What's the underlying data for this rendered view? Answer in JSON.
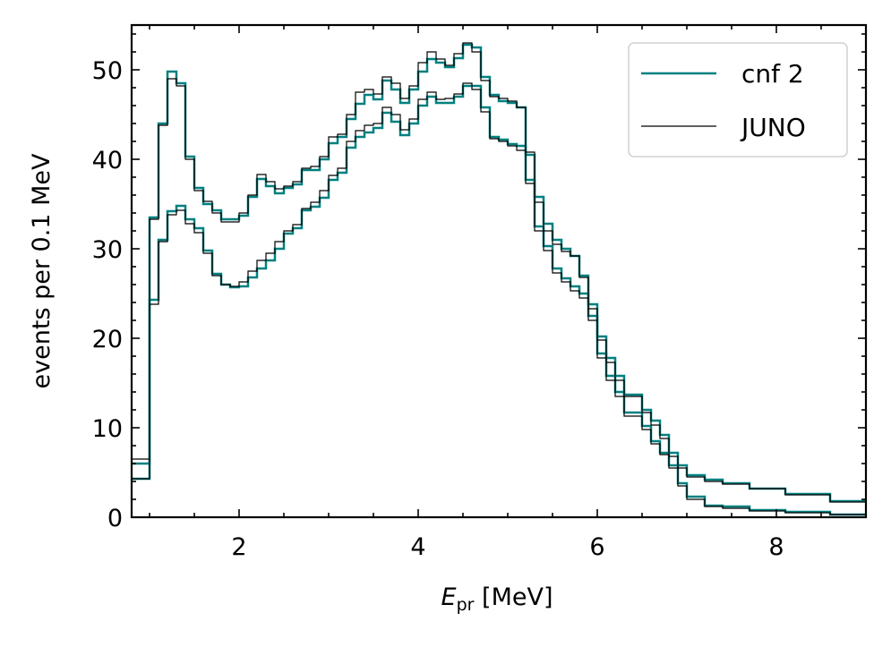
{
  "chart_data": {
    "type": "line",
    "drawstyle": "steps",
    "xlabel_main": "E",
    "xlabel_sub": "pr",
    "xlabel_unit": " [MeV]",
    "ylabel": "events per 0.1 MeV",
    "xlim": [
      0.8,
      9.0
    ],
    "ylim": [
      0,
      55
    ],
    "xticks": [
      2,
      4,
      6,
      8
    ],
    "xtick_labels": [
      "2",
      "4",
      "6",
      "8"
    ],
    "yticks": [
      0,
      10,
      20,
      30,
      40,
      50
    ],
    "ytick_labels": [
      "0",
      "10",
      "20",
      "30",
      "40",
      "50"
    ],
    "legend_position": "top-right",
    "series": [
      {
        "name": "cnf 2",
        "color": "#008080",
        "show_in_legend": true,
        "edges": [
          0.8,
          1.0,
          1.1,
          1.2,
          1.3,
          1.4,
          1.5,
          1.6,
          1.7,
          1.8,
          1.9,
          2.0,
          2.1,
          2.2,
          2.3,
          2.4,
          2.5,
          2.6,
          2.7,
          2.8,
          2.9,
          3.0,
          3.1,
          3.2,
          3.3,
          3.4,
          3.5,
          3.6,
          3.7,
          3.8,
          3.9,
          4.0,
          4.1,
          4.2,
          4.3,
          4.4,
          4.5,
          4.6,
          4.7,
          4.8,
          4.9,
          5.0,
          5.1,
          5.2,
          5.3,
          5.4,
          5.5,
          5.6,
          5.7,
          5.8,
          5.9,
          6.0,
          6.1,
          6.2,
          6.3,
          6.4,
          6.5,
          6.6,
          6.7,
          6.8,
          6.9,
          7.0,
          7.2,
          7.4,
          7.7,
          8.1,
          8.6,
          9.0
        ],
        "values": [
          4.3,
          33.5,
          44.0,
          49.8,
          48.5,
          40.3,
          36.8,
          35.0,
          34.3,
          33.3,
          33.3,
          33.7,
          35.8,
          37.8,
          37.0,
          36.2,
          36.8,
          37.2,
          38.8,
          38.8,
          40.0,
          41.8,
          42.5,
          44.5,
          46.2,
          47.2,
          46.7,
          48.8,
          47.8,
          46.3,
          47.8,
          49.8,
          51.2,
          50.8,
          50.3,
          51.3,
          52.8,
          52.5,
          49.2,
          47.2,
          46.5,
          46.3,
          45.8,
          40.5,
          35.8,
          32.8,
          31.0,
          30.0,
          29.2,
          27.0,
          23.8,
          20.2,
          17.8,
          15.8,
          13.7,
          13.7,
          12.0,
          10.8,
          9.2,
          7.2,
          5.8,
          4.7,
          4.2,
          3.8,
          3.2,
          2.6,
          1.8
        ]
      },
      {
        "name": "cnf 2",
        "color": "#008080",
        "show_in_legend": false,
        "edges": [
          0.8,
          1.0,
          1.1,
          1.2,
          1.3,
          1.4,
          1.5,
          1.6,
          1.7,
          1.8,
          1.9,
          2.0,
          2.1,
          2.2,
          2.3,
          2.4,
          2.5,
          2.6,
          2.7,
          2.8,
          2.9,
          3.0,
          3.1,
          3.2,
          3.3,
          3.4,
          3.5,
          3.6,
          3.7,
          3.8,
          3.9,
          4.0,
          4.1,
          4.2,
          4.3,
          4.4,
          4.5,
          4.6,
          4.7,
          4.8,
          4.9,
          5.0,
          5.1,
          5.2,
          5.3,
          5.4,
          5.5,
          5.6,
          5.7,
          5.8,
          5.9,
          6.0,
          6.1,
          6.2,
          6.3,
          6.4,
          6.5,
          6.6,
          6.7,
          6.8,
          6.9,
          7.0,
          7.2,
          7.4,
          7.7,
          8.1,
          8.6,
          9.0
        ],
        "values": [
          6.0,
          24.3,
          31.0,
          34.2,
          34.8,
          33.3,
          32.3,
          29.8,
          27.2,
          26.0,
          25.7,
          25.8,
          26.8,
          27.8,
          28.7,
          30.0,
          31.7,
          32.3,
          34.3,
          34.7,
          35.7,
          37.7,
          38.5,
          41.3,
          42.5,
          43.0,
          43.5,
          45.2,
          44.2,
          42.7,
          44.0,
          46.0,
          47.0,
          46.3,
          46.3,
          47.0,
          48.2,
          48.2,
          45.8,
          42.5,
          42.2,
          41.7,
          41.5,
          37.7,
          32.5,
          30.3,
          27.8,
          26.7,
          25.8,
          25.0,
          22.5,
          18.3,
          15.8,
          14.0,
          11.7,
          11.7,
          10.2,
          8.5,
          7.2,
          5.8,
          3.8,
          2.3,
          1.3,
          1.2,
          0.8,
          0.6,
          0.3
        ]
      },
      {
        "name": "JUNO",
        "color": "#000000",
        "show_in_legend": true,
        "edges": [
          0.8,
          1.0,
          1.1,
          1.2,
          1.3,
          1.4,
          1.5,
          1.6,
          1.7,
          1.8,
          1.9,
          2.0,
          2.1,
          2.2,
          2.3,
          2.4,
          2.5,
          2.6,
          2.7,
          2.8,
          2.9,
          3.0,
          3.1,
          3.2,
          3.3,
          3.4,
          3.5,
          3.6,
          3.7,
          3.8,
          3.9,
          4.0,
          4.1,
          4.2,
          4.3,
          4.4,
          4.5,
          4.6,
          4.7,
          4.8,
          4.9,
          5.0,
          5.1,
          5.2,
          5.3,
          5.4,
          5.5,
          5.6,
          5.7,
          5.8,
          5.9,
          6.0,
          6.1,
          6.2,
          6.3,
          6.4,
          6.5,
          6.6,
          6.7,
          6.8,
          6.9,
          7.0,
          7.2,
          7.4,
          7.7,
          8.1,
          8.6,
          9.0
        ],
        "values": [
          4.3,
          33.3,
          43.8,
          49.0,
          48.2,
          40.0,
          36.5,
          35.3,
          34.0,
          33.0,
          33.0,
          34.0,
          36.0,
          38.3,
          37.5,
          36.7,
          37.0,
          37.5,
          39.0,
          39.2,
          40.3,
          42.5,
          42.8,
          45.0,
          47.5,
          47.8,
          47.3,
          49.2,
          48.5,
          46.8,
          48.2,
          50.8,
          52.0,
          51.2,
          50.5,
          51.8,
          53.0,
          52.0,
          48.8,
          47.0,
          46.8,
          46.5,
          45.8,
          40.8,
          35.2,
          32.0,
          30.5,
          29.7,
          29.2,
          26.8,
          23.3,
          19.8,
          17.3,
          15.3,
          13.5,
          13.5,
          11.7,
          10.3,
          8.8,
          6.8,
          5.5,
          4.5,
          4.0,
          3.7,
          3.2,
          2.5,
          1.7
        ]
      },
      {
        "name": "JUNO",
        "color": "#000000",
        "show_in_legend": false,
        "edges": [
          0.8,
          1.0,
          1.1,
          1.2,
          1.3,
          1.4,
          1.5,
          1.6,
          1.7,
          1.8,
          1.9,
          2.0,
          2.1,
          2.2,
          2.3,
          2.4,
          2.5,
          2.6,
          2.7,
          2.8,
          2.9,
          3.0,
          3.1,
          3.2,
          3.3,
          3.4,
          3.5,
          3.6,
          3.7,
          3.8,
          3.9,
          4.0,
          4.1,
          4.2,
          4.3,
          4.4,
          4.5,
          4.6,
          4.7,
          4.8,
          4.9,
          5.0,
          5.1,
          5.2,
          5.3,
          5.4,
          5.5,
          5.6,
          5.7,
          5.8,
          5.9,
          6.0,
          6.1,
          6.2,
          6.3,
          6.4,
          6.5,
          6.6,
          6.7,
          6.8,
          6.9,
          7.0,
          7.2,
          7.4,
          7.7,
          8.1,
          8.6,
          9.0
        ],
        "values": [
          6.5,
          23.8,
          30.8,
          33.8,
          34.3,
          32.8,
          31.8,
          29.5,
          27.0,
          26.0,
          25.8,
          26.3,
          27.5,
          28.7,
          29.5,
          30.8,
          32.0,
          32.7,
          34.5,
          35.2,
          36.5,
          38.2,
          39.0,
          42.0,
          43.2,
          43.8,
          44.0,
          45.8,
          45.0,
          43.3,
          44.5,
          46.7,
          47.5,
          46.7,
          46.8,
          47.3,
          48.5,
          47.8,
          45.3,
          42.3,
          42.0,
          41.5,
          41.0,
          37.3,
          32.0,
          29.8,
          27.3,
          26.3,
          25.3,
          24.5,
          22.0,
          17.8,
          15.3,
          13.5,
          11.3,
          11.3,
          9.8,
          8.2,
          7.0,
          5.5,
          3.5,
          2.0,
          1.2,
          1.0,
          0.7,
          0.5,
          0.3
        ]
      }
    ]
  }
}
